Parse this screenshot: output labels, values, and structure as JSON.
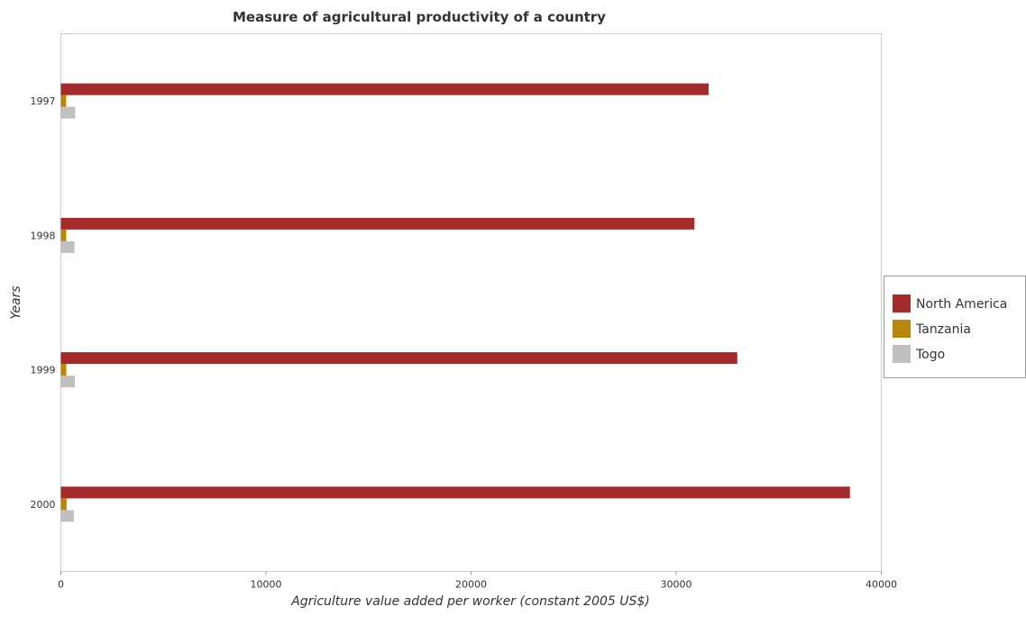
{
  "chart_data": {
    "type": "bar",
    "orientation": "horizontal",
    "title": "Measure of agricultural productivity of a country",
    "xlabel": "Agriculture value added per worker (constant 2005 US$)",
    "ylabel": "Years",
    "categories": [
      "1997",
      "1998",
      "1999",
      "2000"
    ],
    "xlim": [
      0,
      40000
    ],
    "xticks": [
      0,
      10000,
      20000,
      30000,
      40000
    ],
    "xtick_labels": [
      "0",
      "10000",
      "20000",
      "30000",
      "40000"
    ],
    "grid": false,
    "legend_position": "right",
    "series": [
      {
        "name": "North America",
        "color": "#a52a2a",
        "values": [
          31580,
          30890,
          32980,
          38470
        ]
      },
      {
        "name": "Tanzania",
        "color": "#b8860b",
        "values": [
          260,
          260,
          265,
          280
        ]
      },
      {
        "name": "Togo",
        "color": "#c0c0c0",
        "values": [
          700,
          660,
          680,
          630
        ]
      }
    ]
  }
}
